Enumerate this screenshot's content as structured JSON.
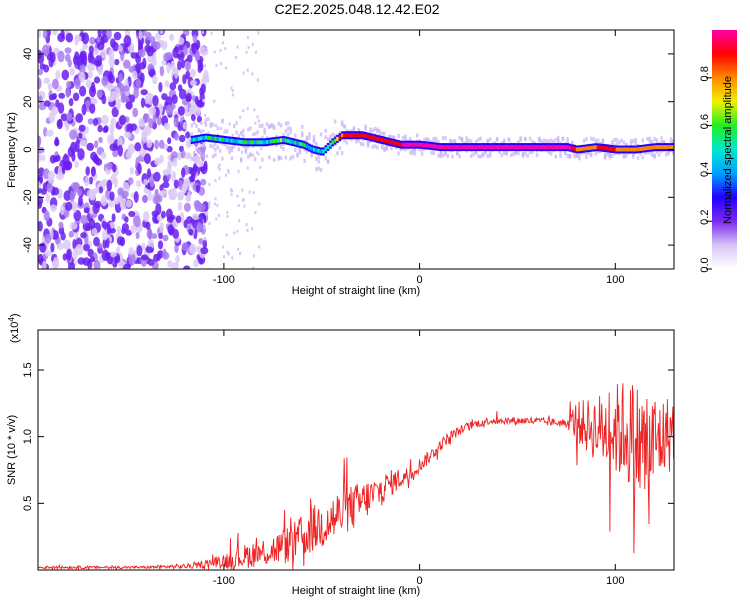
{
  "chart_data": [
    {
      "type": "heatmap",
      "title": "C2E2.2025.048.12.42.E02",
      "xlabel": "Height of straight line (km)",
      "ylabel": "Frequency (Hz)",
      "xlim": [
        -195,
        130
      ],
      "ylim": [
        -50,
        50
      ],
      "xticks": [
        {
          "value": -100,
          "label": "-100"
        },
        {
          "value": 0,
          "label": "0"
        },
        {
          "value": 100,
          "label": "100"
        }
      ],
      "yticks": [
        {
          "value": -40,
          "label": "-40"
        },
        {
          "value": -20,
          "label": "-20"
        },
        {
          "value": 0,
          "label": "0"
        },
        {
          "value": 20,
          "label": "20"
        },
        {
          "value": 40,
          "label": "40"
        }
      ],
      "noise_region_x": [
        -195,
        -112
      ],
      "ridge": {
        "x": [
          -117,
          -110,
          -100,
          -90,
          -80,
          -70,
          -60,
          -55,
          -50,
          -45,
          -40,
          -30,
          -20,
          -10,
          0,
          10,
          20,
          40,
          60,
          75,
          80,
          90,
          100,
          110,
          120,
          130
        ],
        "y": [
          4,
          5,
          4,
          3,
          3,
          4,
          2,
          0,
          -1,
          3,
          6,
          6,
          4,
          2,
          2,
          1,
          1,
          1,
          1,
          1,
          0,
          1,
          0,
          0,
          1,
          1
        ],
        "amplitude": [
          0.45,
          0.5,
          0.55,
          0.5,
          0.5,
          0.55,
          0.55,
          0.5,
          0.5,
          0.7,
          0.85,
          0.9,
          0.9,
          0.95,
          0.95,
          0.98,
          1.0,
          1.0,
          1.0,
          1.0,
          0.8,
          0.85,
          0.85,
          0.8,
          0.8,
          0.8
        ]
      },
      "colorbar": {
        "label": "Normalized spectral amplitude",
        "range": [
          0,
          1
        ],
        "ticks": [
          {
            "value": 0.0,
            "label": "0.0"
          },
          {
            "value": 0.2,
            "label": "0.2"
          },
          {
            "value": 0.4,
            "label": "0.4"
          },
          {
            "value": 0.6,
            "label": "0.6"
          },
          {
            "value": 0.8,
            "label": "0.8"
          }
        ],
        "colors": [
          "#ffffff",
          "#d8c4f5",
          "#7a2af0",
          "#2200ff",
          "#00a0ff",
          "#00e8d0",
          "#22ee22",
          "#f0f000",
          "#ff8800",
          "#ff0000",
          "#ff00aa"
        ]
      }
    },
    {
      "type": "line",
      "xlabel": "Height of straight line (km)",
      "ylabel": "SNR (10 * v/v)",
      "y_multiplier_label": "(x10",
      "y_multiplier_exp": "4",
      "y_multiplier_close": ")",
      "xlim": [
        -195,
        130
      ],
      "ylim": [
        0,
        1.8
      ],
      "xticks": [
        {
          "value": -100,
          "label": "-100"
        },
        {
          "value": 0,
          "label": "0"
        },
        {
          "value": 100,
          "label": "100"
        }
      ],
      "yticks": [
        {
          "value": 0.5,
          "label": "0.5"
        },
        {
          "value": 1.0,
          "label": "1.0"
        },
        {
          "value": 1.5,
          "label": "1.5"
        }
      ],
      "line_color": "#ee2222",
      "series": [
        {
          "name": "SNR",
          "x": [
            -195,
            -170,
            -140,
            -115,
            -105,
            -95,
            -85,
            -75,
            -65,
            -55,
            -45,
            -35,
            -25,
            -15,
            -5,
            5,
            15,
            25,
            35,
            45,
            55,
            65,
            75,
            80,
            85,
            95,
            105,
            115,
            125,
            130
          ],
          "y": [
            0.02,
            0.02,
            0.02,
            0.03,
            0.06,
            0.08,
            0.12,
            0.15,
            0.2,
            0.3,
            0.38,
            0.46,
            0.55,
            0.65,
            0.72,
            0.85,
            1.0,
            1.08,
            1.12,
            1.12,
            1.12,
            1.11,
            1.1,
            1.12,
            1.08,
            1.05,
            1.05,
            0.9,
            1.0,
            1.05
          ],
          "spread": [
            0.01,
            0.01,
            0.01,
            0.02,
            0.04,
            0.08,
            0.1,
            0.12,
            0.15,
            0.18,
            0.2,
            0.18,
            0.14,
            0.1,
            0.06,
            0.05,
            0.04,
            0.03,
            0.03,
            0.03,
            0.03,
            0.03,
            0.03,
            0.15,
            0.2,
            0.3,
            0.4,
            0.5,
            0.3,
            0.3
          ]
        }
      ]
    }
  ]
}
